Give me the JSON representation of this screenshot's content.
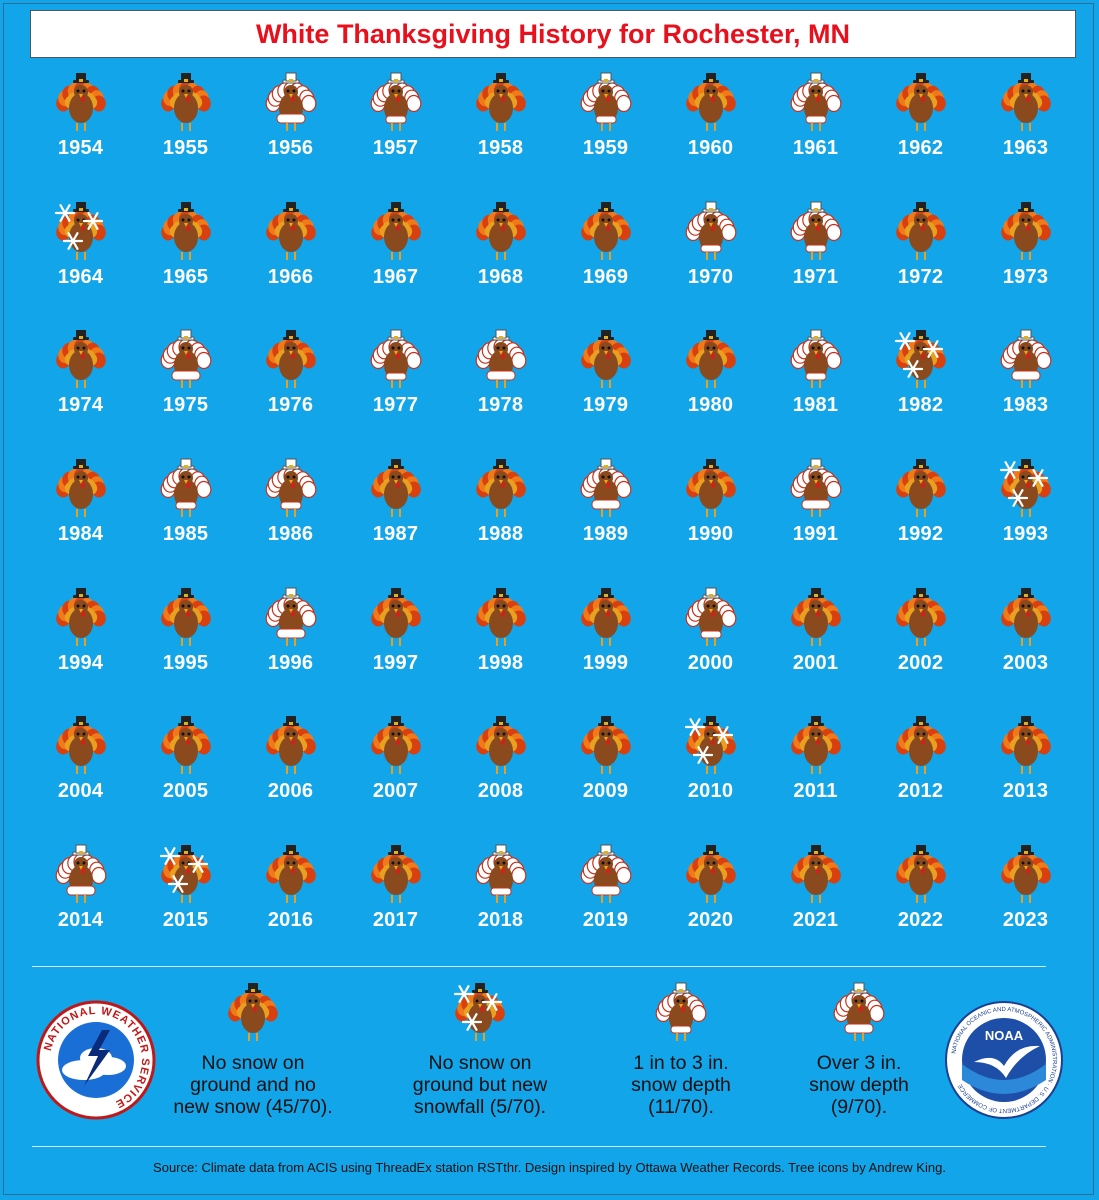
{
  "title": "White Thanksgiving History for Rochester, MN",
  "colors": {
    "background": "#12a5e9",
    "title": "#e8101c",
    "no_snow_feathers": "#d83c0e",
    "snow_feathers": "#ffffff"
  },
  "years": [
    {
      "year": "1954",
      "category": "none"
    },
    {
      "year": "1955",
      "category": "none"
    },
    {
      "year": "1956",
      "category": "over3"
    },
    {
      "year": "1957",
      "category": "1to3"
    },
    {
      "year": "1958",
      "category": "none"
    },
    {
      "year": "1959",
      "category": "1to3"
    },
    {
      "year": "1960",
      "category": "none"
    },
    {
      "year": "1961",
      "category": "1to3"
    },
    {
      "year": "1962",
      "category": "none"
    },
    {
      "year": "1963",
      "category": "none"
    },
    {
      "year": "1964",
      "category": "newsnow"
    },
    {
      "year": "1965",
      "category": "none"
    },
    {
      "year": "1966",
      "category": "none"
    },
    {
      "year": "1967",
      "category": "none"
    },
    {
      "year": "1968",
      "category": "none"
    },
    {
      "year": "1969",
      "category": "none"
    },
    {
      "year": "1970",
      "category": "1to3"
    },
    {
      "year": "1971",
      "category": "1to3"
    },
    {
      "year": "1972",
      "category": "none"
    },
    {
      "year": "1973",
      "category": "none"
    },
    {
      "year": "1974",
      "category": "none"
    },
    {
      "year": "1975",
      "category": "over3"
    },
    {
      "year": "1976",
      "category": "none"
    },
    {
      "year": "1977",
      "category": "1to3"
    },
    {
      "year": "1978",
      "category": "over3"
    },
    {
      "year": "1979",
      "category": "none"
    },
    {
      "year": "1980",
      "category": "none"
    },
    {
      "year": "1981",
      "category": "1to3"
    },
    {
      "year": "1982",
      "category": "newsnow"
    },
    {
      "year": "1983",
      "category": "over3"
    },
    {
      "year": "1984",
      "category": "none"
    },
    {
      "year": "1985",
      "category": "1to3"
    },
    {
      "year": "1986",
      "category": "1to3"
    },
    {
      "year": "1987",
      "category": "none"
    },
    {
      "year": "1988",
      "category": "none"
    },
    {
      "year": "1989",
      "category": "over3"
    },
    {
      "year": "1990",
      "category": "none"
    },
    {
      "year": "1991",
      "category": "over3"
    },
    {
      "year": "1992",
      "category": "none"
    },
    {
      "year": "1993",
      "category": "newsnow"
    },
    {
      "year": "1994",
      "category": "none"
    },
    {
      "year": "1995",
      "category": "none"
    },
    {
      "year": "1996",
      "category": "over3"
    },
    {
      "year": "1997",
      "category": "none"
    },
    {
      "year": "1998",
      "category": "none"
    },
    {
      "year": "1999",
      "category": "none"
    },
    {
      "year": "2000",
      "category": "1to3"
    },
    {
      "year": "2001",
      "category": "none"
    },
    {
      "year": "2002",
      "category": "none"
    },
    {
      "year": "2003",
      "category": "none"
    },
    {
      "year": "2004",
      "category": "none"
    },
    {
      "year": "2005",
      "category": "none"
    },
    {
      "year": "2006",
      "category": "none"
    },
    {
      "year": "2007",
      "category": "none"
    },
    {
      "year": "2008",
      "category": "none"
    },
    {
      "year": "2009",
      "category": "none"
    },
    {
      "year": "2010",
      "category": "newsnow"
    },
    {
      "year": "2011",
      "category": "none"
    },
    {
      "year": "2012",
      "category": "none"
    },
    {
      "year": "2013",
      "category": "none"
    },
    {
      "year": "2014",
      "category": "over3"
    },
    {
      "year": "2015",
      "category": "newsnow"
    },
    {
      "year": "2016",
      "category": "none"
    },
    {
      "year": "2017",
      "category": "none"
    },
    {
      "year": "2018",
      "category": "1to3"
    },
    {
      "year": "2019",
      "category": "over3"
    },
    {
      "year": "2020",
      "category": "none"
    },
    {
      "year": "2021",
      "category": "none"
    },
    {
      "year": "2022",
      "category": "none"
    },
    {
      "year": "2023",
      "category": "none"
    }
  ],
  "legend": [
    {
      "category": "none",
      "label": "No snow on\nground and no\nnew snow (45/70)."
    },
    {
      "category": "newsnow",
      "label": "No snow on\nground but new\nsnowfall (5/70)."
    },
    {
      "category": "1to3",
      "label": "1 in to 3 in.\nsnow depth\n(11/70)."
    },
    {
      "category": "over3",
      "label": "Over 3 in.\nsnow depth\n(9/70)."
    }
  ],
  "logos": {
    "nws_text": "NATIONAL WEATHER SERVICE",
    "noaa_text": "NOAA",
    "noaa_ring_text": "NATIONAL OCEANIC AND ATMOSPHERIC ADMINISTRATION · U.S. DEPARTMENT OF COMMERCE"
  },
  "source": "Source: Climate data from ACIS using ThreadEx station RSTthr. Design inspired by Ottawa Weather Records. Tree icons by Andrew King."
}
